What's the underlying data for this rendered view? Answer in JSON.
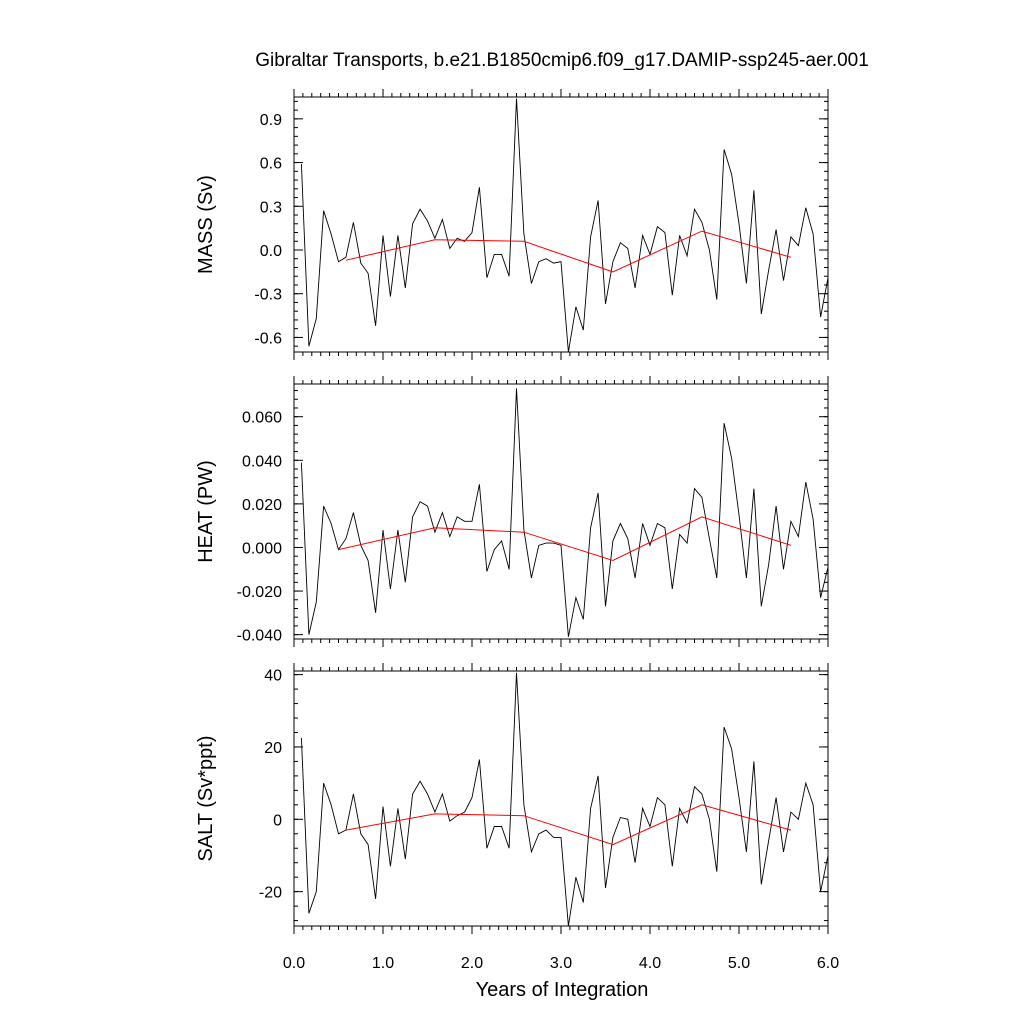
{
  "title": "Gibraltar Transports, b.e21.B1850cmip6.f09_g17.DAMIP-ssp245-aer.001",
  "xlabel": "Years of Integration",
  "x_ticks": [
    "0.0",
    "1.0",
    "2.0",
    "3.0",
    "4.0",
    "5.0",
    "6.0"
  ],
  "colors": {
    "raw": "#000000",
    "smoothed": "#ff0000"
  },
  "chart_data": [
    {
      "type": "line",
      "ylabel": "MASS (Sv)",
      "xlim": [
        0,
        6
      ],
      "ylim": [
        -0.7,
        1.05
      ],
      "y_tick_values": [
        -0.6,
        -0.3,
        0.0,
        0.3,
        0.6,
        0.9
      ],
      "y_tick_labels": [
        "-0.6",
        "-0.3",
        "0.0",
        "0.3",
        "0.6",
        "0.9"
      ],
      "x": [
        0.083,
        0.167,
        0.25,
        0.333,
        0.417,
        0.5,
        0.583,
        0.667,
        0.75,
        0.833,
        0.917,
        1.0,
        1.083,
        1.167,
        1.25,
        1.333,
        1.417,
        1.5,
        1.583,
        1.667,
        1.75,
        1.833,
        1.917,
        2.0,
        2.083,
        2.167,
        2.25,
        2.333,
        2.417,
        2.5,
        2.583,
        2.667,
        2.75,
        2.833,
        2.917,
        3.0,
        3.083,
        3.167,
        3.25,
        3.333,
        3.417,
        3.5,
        3.583,
        3.667,
        3.75,
        3.833,
        3.917,
        4.0,
        4.083,
        4.167,
        4.25,
        4.333,
        4.417,
        4.5,
        4.583,
        4.667,
        4.75,
        4.833,
        4.917,
        5.0,
        5.083,
        5.167,
        5.25,
        5.333,
        5.417,
        5.5,
        5.583,
        5.667,
        5.75,
        5.833,
        5.917,
        6.0
      ],
      "series": [
        {
          "values": [
            0.59,
            -0.66,
            -0.47,
            0.27,
            0.11,
            -0.08,
            -0.05,
            0.19,
            -0.09,
            -0.16,
            -0.52,
            0.1,
            -0.32,
            0.1,
            -0.26,
            0.18,
            0.28,
            0.2,
            0.08,
            0.21,
            0.01,
            0.08,
            0.06,
            0.12,
            0.43,
            -0.19,
            -0.03,
            -0.03,
            -0.18,
            1.04,
            0.11,
            -0.23,
            -0.08,
            -0.06,
            -0.09,
            -0.08,
            -0.7,
            -0.39,
            -0.55,
            0.09,
            0.34,
            -0.37,
            -0.08,
            0.05,
            0.01,
            -0.26,
            0.1,
            -0.03,
            0.16,
            0.12,
            -0.31,
            0.1,
            -0.04,
            0.28,
            0.19,
            0.0,
            -0.34,
            0.69,
            0.52,
            0.18,
            -0.23,
            0.41,
            -0.44,
            -0.14,
            0.14,
            -0.21,
            0.09,
            0.03,
            0.29,
            0.11,
            -0.46,
            -0.19
          ]
        },
        {
          "x": [
            0.583,
            1.583,
            2.583,
            3.583,
            4.583,
            5.583
          ],
          "values": [
            -0.07,
            0.07,
            0.06,
            -0.15,
            0.13,
            -0.05
          ]
        }
      ]
    },
    {
      "type": "line",
      "ylabel": "HEAT (PW)",
      "xlim": [
        0,
        6
      ],
      "ylim": [
        -0.042,
        0.075
      ],
      "y_tick_values": [
        -0.04,
        -0.02,
        0.0,
        0.02,
        0.04,
        0.06
      ],
      "y_tick_labels": [
        "-0.040",
        "-0.020",
        "0.000",
        "0.020",
        "0.040",
        "0.060"
      ],
      "x": [
        0.083,
        0.167,
        0.25,
        0.333,
        0.417,
        0.5,
        0.583,
        0.667,
        0.75,
        0.833,
        0.917,
        1.0,
        1.083,
        1.167,
        1.25,
        1.333,
        1.417,
        1.5,
        1.583,
        1.667,
        1.75,
        1.833,
        1.917,
        2.0,
        2.083,
        2.167,
        2.25,
        2.333,
        2.417,
        2.5,
        2.583,
        2.667,
        2.75,
        2.833,
        2.917,
        3.0,
        3.083,
        3.167,
        3.25,
        3.333,
        3.417,
        3.5,
        3.583,
        3.667,
        3.75,
        3.833,
        3.917,
        4.0,
        4.083,
        4.167,
        4.25,
        4.333,
        4.417,
        4.5,
        4.583,
        4.667,
        4.75,
        4.833,
        4.917,
        5.0,
        5.083,
        5.167,
        5.25,
        5.333,
        5.417,
        5.5,
        5.583,
        5.667,
        5.75,
        5.833,
        5.917,
        6.0
      ],
      "series": [
        {
          "values": [
            0.039,
            -0.04,
            -0.025,
            0.019,
            0.011,
            -0.001,
            0.004,
            0.016,
            0.001,
            -0.006,
            -0.03,
            0.008,
            -0.019,
            0.008,
            -0.016,
            0.014,
            0.021,
            0.019,
            0.007,
            0.016,
            0.005,
            0.014,
            0.012,
            0.012,
            0.029,
            -0.011,
            -0.001,
            0.003,
            -0.01,
            0.073,
            0.008,
            -0.014,
            0.001,
            0.002,
            0.002,
            0.001,
            -0.041,
            -0.023,
            -0.033,
            0.009,
            0.025,
            -0.027,
            0.003,
            0.011,
            0.004,
            -0.014,
            0.011,
            0.001,
            0.011,
            0.009,
            -0.019,
            0.006,
            0.002,
            0.027,
            0.023,
            0.004,
            -0.014,
            0.057,
            0.041,
            0.015,
            -0.014,
            0.027,
            -0.027,
            -0.008,
            0.019,
            -0.01,
            0.012,
            0.005,
            0.03,
            0.013,
            -0.023,
            -0.009
          ]
        },
        {
          "x": [
            0.5,
            1.583,
            2.583,
            3.583,
            4.583,
            5.583
          ],
          "values": [
            -0.001,
            0.009,
            0.007,
            -0.006,
            0.014,
            0.001
          ]
        }
      ]
    },
    {
      "type": "line",
      "ylabel": "SALT (Sv*ppt)",
      "xlim": [
        0,
        6
      ],
      "ylim": [
        -29.5,
        41
      ],
      "y_tick_values": [
        -20,
        0,
        20,
        40
      ],
      "y_tick_labels": [
        "-20",
        "0",
        "20",
        "40"
      ],
      "x": [
        0.083,
        0.167,
        0.25,
        0.333,
        0.417,
        0.5,
        0.583,
        0.667,
        0.75,
        0.833,
        0.917,
        1.0,
        1.083,
        1.167,
        1.25,
        1.333,
        1.417,
        1.5,
        1.583,
        1.667,
        1.75,
        1.833,
        1.917,
        2.0,
        2.083,
        2.167,
        2.25,
        2.333,
        2.417,
        2.5,
        2.583,
        2.667,
        2.75,
        2.833,
        2.917,
        3.0,
        3.083,
        3.167,
        3.25,
        3.333,
        3.417,
        3.5,
        3.583,
        3.667,
        3.75,
        3.833,
        3.917,
        4.0,
        4.083,
        4.167,
        4.25,
        4.333,
        4.417,
        4.5,
        4.583,
        4.667,
        4.75,
        4.833,
        4.917,
        5.0,
        5.083,
        5.167,
        5.25,
        5.333,
        5.417,
        5.5,
        5.583,
        5.667,
        5.75,
        5.833,
        5.917,
        6.0
      ],
      "series": [
        {
          "values": [
            22.5,
            -26,
            -20,
            10,
            4,
            -4,
            -3,
            7,
            -4,
            -7,
            -22,
            3.5,
            -13,
            3,
            -11,
            7,
            10.5,
            7,
            2,
            7,
            -0.5,
            1,
            2,
            6,
            16.5,
            -8,
            -2,
            -2,
            -8,
            40.5,
            4,
            -9,
            -4,
            -3,
            -5,
            -5,
            -29.5,
            -16,
            -23,
            3,
            12,
            -19,
            -5,
            0.5,
            0,
            -12,
            3,
            -2,
            6,
            4,
            -13,
            3,
            -1,
            9,
            7,
            0,
            -14.5,
            25.5,
            19.5,
            6,
            -9,
            16,
            -18,
            -6,
            6,
            -9,
            2,
            0,
            10,
            4,
            -20,
            -10
          ]
        },
        {
          "x": [
            0.583,
            1.583,
            2.583,
            3.583,
            4.583,
            5.583
          ],
          "values": [
            -3,
            1.5,
            1,
            -7,
            4,
            -3
          ]
        }
      ]
    }
  ]
}
